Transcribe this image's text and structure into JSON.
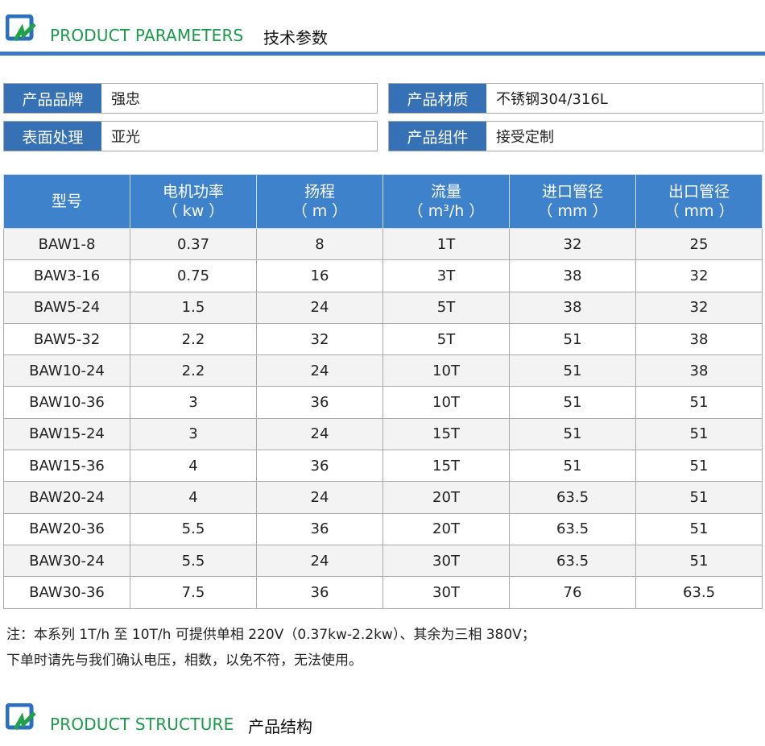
{
  "section1": {
    "en": "PRODUCT PARAMETERS",
    "cn": "技术参数"
  },
  "info": [
    {
      "label": "产品品牌",
      "value": "强忠"
    },
    {
      "label": "产品材质",
      "value": "不锈钢304/316L"
    },
    {
      "label": "表面处理",
      "value": "亚光"
    },
    {
      "label": "产品组件",
      "value": "接受定制"
    }
  ],
  "table": {
    "headers": [
      [
        "型号",
        ""
      ],
      [
        "电机功率",
        "（ kw ）"
      ],
      [
        "扬程",
        "（ m ）"
      ],
      [
        "流量",
        "（ m³/h ）"
      ],
      [
        "进口管径",
        "（ mm ）"
      ],
      [
        "出口管径",
        "（ mm ）"
      ]
    ],
    "rows": [
      [
        "BAW1-8",
        "0.37",
        "8",
        "1T",
        "32",
        "25"
      ],
      [
        "BAW3-16",
        "0.75",
        "16",
        "3T",
        "38",
        "32"
      ],
      [
        "BAW5-24",
        "1.5",
        "24",
        "5T",
        "38",
        "32"
      ],
      [
        "BAW5-32",
        "2.2",
        "32",
        "5T",
        "51",
        "38"
      ],
      [
        "BAW10-24",
        "2.2",
        "24",
        "10T",
        "51",
        "38"
      ],
      [
        "BAW10-36",
        "3",
        "36",
        "10T",
        "51",
        "51"
      ],
      [
        "BAW15-24",
        "3",
        "24",
        "15T",
        "51",
        "51"
      ],
      [
        "BAW15-36",
        "4",
        "36",
        "15T",
        "51",
        "51"
      ],
      [
        "BAW20-24",
        "4",
        "24",
        "20T",
        "63.5",
        "51"
      ],
      [
        "BAW20-36",
        "5.5",
        "36",
        "20T",
        "63.5",
        "51"
      ],
      [
        "BAW30-24",
        "5.5",
        "24",
        "30T",
        "63.5",
        "51"
      ],
      [
        "BAW30-36",
        "7.5",
        "36",
        "30T",
        "76",
        "63.5"
      ]
    ]
  },
  "notes": [
    "注：本系列 1T/h 至 10T/h 可提供单相 220V（0.37kw-2.2kw）、其余为三相 380V；",
    "下单时请先与我们确认电压，相数，以免不符，无法使用。"
  ],
  "section2": {
    "en": "PRODUCT STRUCTURE",
    "cn": "产品结构"
  }
}
